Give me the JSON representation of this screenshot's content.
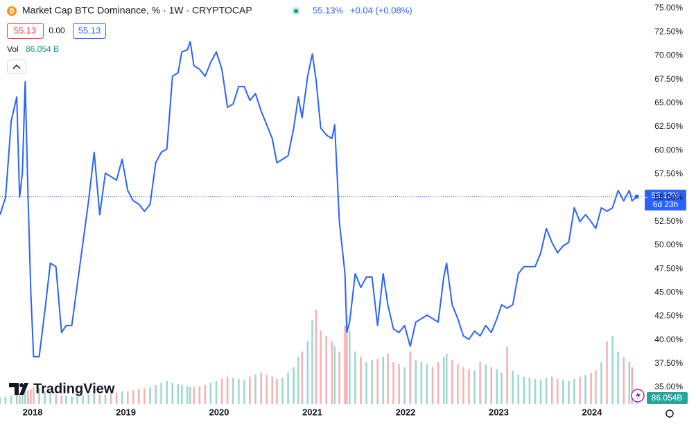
{
  "chart_data": {
    "type": "line",
    "title": "Market Cap BTC Dominance, % · 1W · CRYPTOCAP",
    "last_value_label": "55.13%",
    "change_label": "+0.04 (+0.08%)",
    "ohlc_labels": [
      "55.13",
      "0.00",
      "55.13"
    ],
    "volume_legend_value": "86.054 B",
    "price_tag": "55.13%",
    "countdown": "6d 23h",
    "volume_tag": "86.054B",
    "brand": "TradingView",
    "x": [
      2017.65,
      2017.71,
      2017.77,
      2017.83,
      2017.86,
      2017.89,
      2017.92,
      2017.95,
      2017.98,
      2018.01,
      2018.07,
      2018.13,
      2018.19,
      2018.25,
      2018.31,
      2018.36,
      2018.42,
      2018.48,
      2018.54,
      2018.6,
      2018.66,
      2018.72,
      2018.78,
      2018.84,
      2018.9,
      2018.96,
      2019.02,
      2019.08,
      2019.14,
      2019.2,
      2019.26,
      2019.32,
      2019.38,
      2019.44,
      2019.5,
      2019.56,
      2019.6,
      2019.66,
      2019.69,
      2019.73,
      2019.79,
      2019.85,
      2019.91,
      2019.97,
      2020.03,
      2020.09,
      2020.15,
      2020.21,
      2020.27,
      2020.33,
      2020.39,
      2020.45,
      2020.51,
      2020.57,
      2020.62,
      2020.68,
      2020.74,
      2020.8,
      2020.85,
      2020.89,
      2020.95,
      2021.0,
      2021.04,
      2021.09,
      2021.15,
      2021.21,
      2021.24,
      2021.29,
      2021.35,
      2021.37,
      2021.4,
      2021.46,
      2021.52,
      2021.58,
      2021.64,
      2021.7,
      2021.76,
      2021.81,
      2021.87,
      2021.93,
      2021.99,
      2022.05,
      2022.11,
      2022.17,
      2022.23,
      2022.29,
      2022.35,
      2022.41,
      2022.44,
      2022.5,
      2022.56,
      2022.62,
      2022.68,
      2022.74,
      2022.8,
      2022.86,
      2022.92,
      2022.98,
      2023.03,
      2023.09,
      2023.15,
      2023.21,
      2023.27,
      2023.33,
      2023.39,
      2023.45,
      2023.51,
      2023.57,
      2023.63,
      2023.69,
      2023.75,
      2023.81,
      2023.87,
      2023.93,
      2023.99,
      2024.04,
      2024.1,
      2024.16,
      2024.22,
      2024.28,
      2024.34,
      2024.4,
      2024.43,
      2024.48
    ],
    "series": [
      {
        "name": "BTC Dominance",
        "color": "#2962ff",
        "values": [
          53.22,
          55.05,
          63.09,
          65.65,
          55.05,
          57.6,
          67.25,
          55.41,
          45.18,
          38.23,
          38.23,
          42.98,
          48.1,
          47.74,
          40.79,
          41.52,
          41.52,
          45.91,
          50.29,
          54.68,
          59.8,
          53.22,
          57.6,
          57.24,
          56.87,
          59.07,
          55.78,
          54.68,
          54.32,
          53.58,
          54.32,
          58.7,
          59.8,
          60.16,
          67.84,
          68.2,
          70.4,
          70.62,
          71.49,
          68.94,
          68.57,
          67.84,
          69.3,
          70.4,
          68.57,
          64.55,
          64.91,
          66.74,
          66.74,
          65.28,
          66.01,
          64.18,
          62.72,
          61.26,
          58.7,
          59.07,
          59.43,
          62.36,
          65.65,
          63.45,
          67.84,
          70.18,
          67.47,
          62.36,
          61.63,
          61.26,
          62.72,
          52.49,
          47.01,
          40.79,
          41.89,
          47.01,
          45.54,
          46.64,
          46.64,
          41.52,
          47.01,
          43.72,
          41.16,
          40.79,
          41.52,
          39.33,
          41.89,
          42.25,
          42.62,
          42.25,
          41.89,
          46.64,
          48.1,
          43.72,
          42.25,
          40.43,
          40.06,
          40.94,
          40.43,
          41.52,
          40.79,
          42.25,
          43.72,
          43.35,
          43.72,
          47.01,
          47.74,
          47.74,
          47.74,
          49.2,
          51.76,
          50.29,
          49.2,
          49.93,
          50.29,
          53.95,
          52.49,
          53.22,
          52.49,
          51.76,
          53.95,
          53.58,
          53.95,
          55.78,
          54.68,
          55.78,
          54.68,
          55.13
        ]
      },
      {
        "name": "Vol",
        "axis": "y2",
        "up_color": "#26a69a",
        "down_color": "#ef5350",
        "values": [
          60,
          70,
          80,
          90,
          100,
          110,
          120,
          130,
          140,
          160,
          150,
          120,
          100,
          90,
          80,
          80,
          70,
          70,
          80,
          90,
          100,
          90,
          90,
          100,
          110,
          120,
          120,
          130,
          140,
          150,
          160,
          180,
          200,
          220,
          200,
          190,
          180,
          170,
          160,
          160,
          170,
          180,
          200,
          220,
          240,
          260,
          250,
          240,
          230,
          260,
          280,
          300,
          280,
          260,
          240,
          250,
          300,
          350,
          450,
          500,
          600,
          800,
          900,
          700,
          650,
          600,
          550,
          500,
          750,
          850,
          700,
          500,
          450,
          400,
          420,
          430,
          450,
          480,
          400,
          380,
          350,
          500,
          420,
          400,
          380,
          350,
          400,
          450,
          480,
          420,
          380,
          350,
          330,
          320,
          400,
          380,
          350,
          330,
          300,
          550,
          320,
          280,
          260,
          250,
          240,
          230,
          250,
          260,
          240,
          230,
          220,
          240,
          260,
          280,
          300,
          320,
          400,
          600,
          650,
          500,
          450,
          400,
          350,
          86.054
        ]
      }
    ],
    "xlim": [
      2017.65,
      2024.565
    ],
    "xticks": [
      2018,
      2019,
      2020,
      2021,
      2022,
      2023,
      2024
    ],
    "ylim": [
      33.25,
      75.88
    ],
    "yticks": [
      {
        "value": 35,
        "label": "35.00%"
      },
      {
        "value": 37.5,
        "label": "37.50%"
      },
      {
        "value": 40,
        "label": "40.00%"
      },
      {
        "value": 42.5,
        "label": "42.50%"
      },
      {
        "value": 45,
        "label": "45.00%"
      },
      {
        "value": 47.5,
        "label": "47.50%"
      },
      {
        "value": 50,
        "label": "50.00%"
      },
      {
        "value": 52.5,
        "label": "52.50%"
      },
      {
        "value": 55,
        "label": "55.00%"
      },
      {
        "value": 57.5,
        "label": "57.50%"
      },
      {
        "value": 60,
        "label": "60.00%"
      },
      {
        "value": 62.5,
        "label": "62.50%"
      },
      {
        "value": 65,
        "label": "65.00%"
      },
      {
        "value": 67.5,
        "label": "67.50%"
      },
      {
        "value": 70,
        "label": "70.00%"
      },
      {
        "value": 72.5,
        "label": "72.50%"
      },
      {
        "value": 75,
        "label": "75.00%"
      }
    ],
    "y2lim": [
      0,
      3860
    ],
    "grid": false
  }
}
